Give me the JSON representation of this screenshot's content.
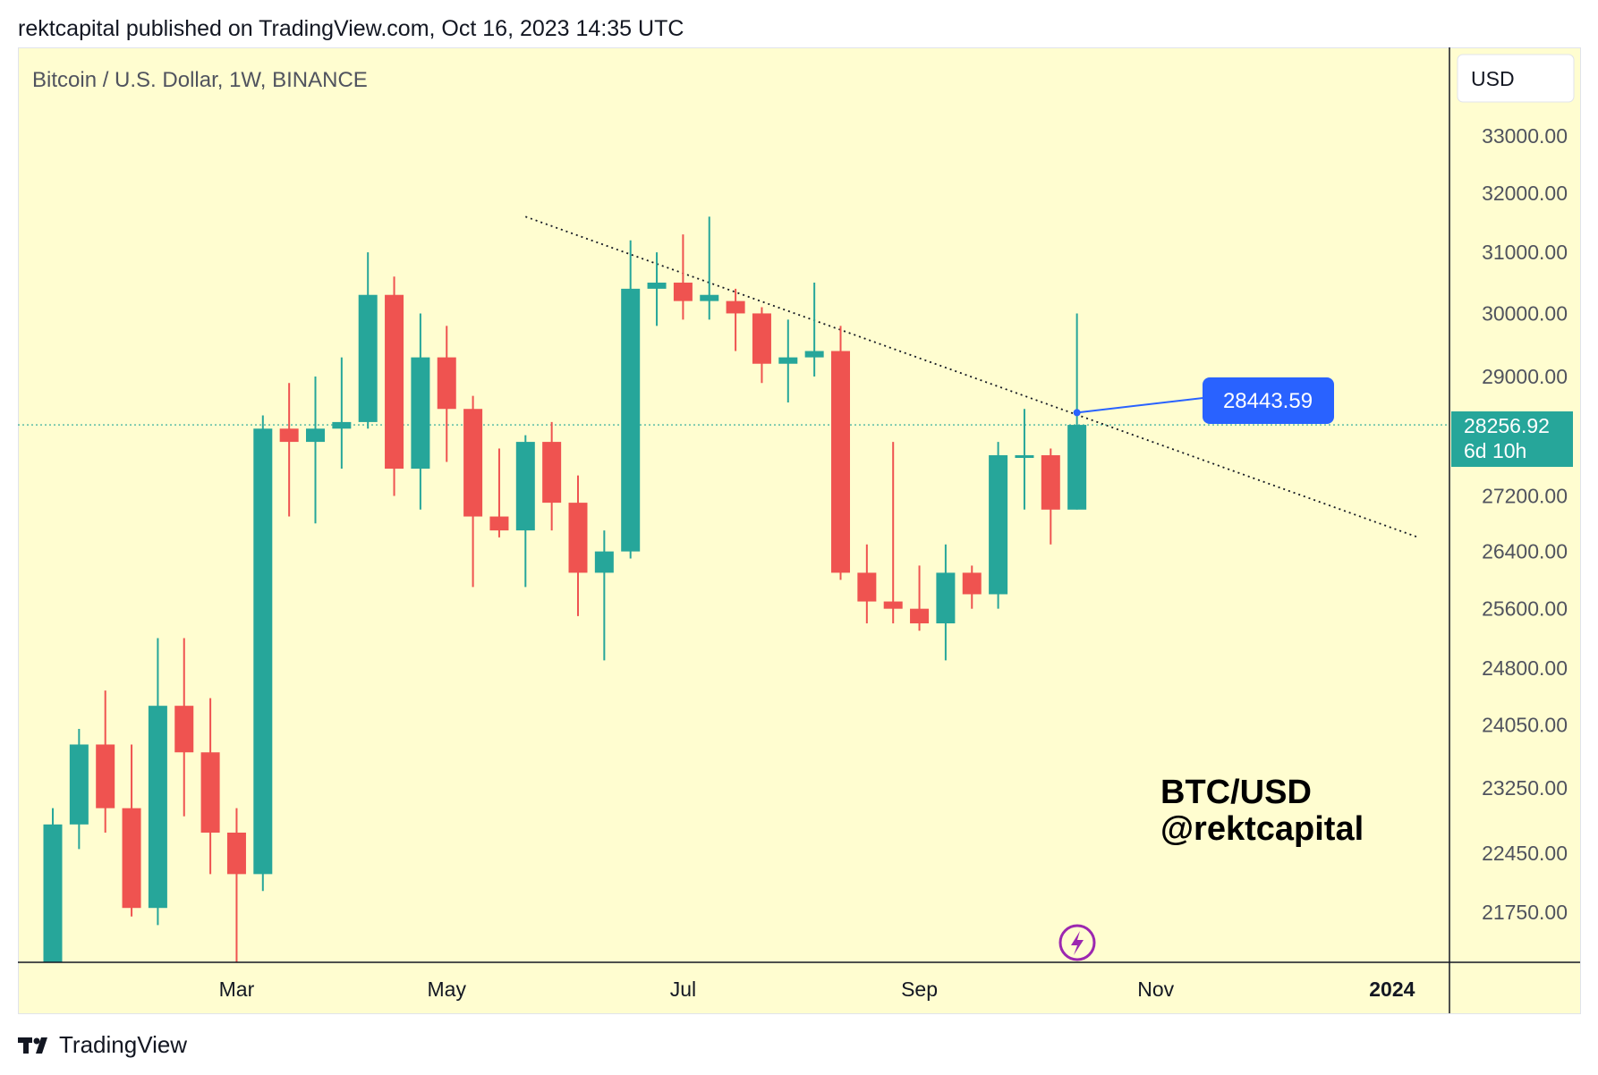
{
  "header": {
    "text": "rektcapital published on TradingView.com, Oct 16, 2023 14:35 UTC"
  },
  "chart_data": {
    "type": "candlestick",
    "symbol_label": "Bitcoin / U.S. Dollar, 1W, BINANCE",
    "currency": "USD",
    "watermark": [
      "BTC/USD",
      "@rektcapital"
    ],
    "price_axis": {
      "scale": "log",
      "ticks": [
        "33000.00",
        "32000.00",
        "31000.00",
        "30000.00",
        "29000.00",
        "27200.00",
        "26400.00",
        "25600.00",
        "24800.00",
        "24050.00",
        "23250.00",
        "22450.00",
        "21750.00"
      ]
    },
    "time_axis": {
      "ticks": [
        "Mar",
        "May",
        "Jul",
        "Sep",
        "Nov",
        "2024"
      ]
    },
    "last_price": {
      "value": "28256.92",
      "countdown": "6d 10h"
    },
    "annotation": {
      "label": "28443.59",
      "value": 28443.59
    },
    "trendline": {
      "from": {
        "week": 18,
        "price": 31600
      },
      "to": {
        "week": 52,
        "price": 26600
      },
      "style": "dotted"
    },
    "colors": {
      "up": "#26a69a",
      "down": "#ef5350",
      "background": "#fffdd0",
      "annotation": "#2962ff"
    },
    "candles": [
      {
        "week": 0,
        "o": 21000,
        "h": 23000,
        "l": 20900,
        "c": 22800
      },
      {
        "week": 1,
        "o": 22800,
        "h": 24000,
        "l": 22500,
        "c": 23800
      },
      {
        "week": 2,
        "o": 23800,
        "h": 24500,
        "l": 22700,
        "c": 23000
      },
      {
        "week": 3,
        "o": 23000,
        "h": 23800,
        "l": 21700,
        "c": 21800
      },
      {
        "week": 4,
        "o": 21800,
        "h": 25200,
        "l": 21600,
        "c": 24300
      },
      {
        "week": 5,
        "o": 24300,
        "h": 25200,
        "l": 22900,
        "c": 23700
      },
      {
        "week": 6,
        "o": 23700,
        "h": 24400,
        "l": 22200,
        "c": 22700
      },
      {
        "week": 7,
        "o": 22700,
        "h": 23000,
        "l": 20100,
        "c": 22200
      },
      {
        "week": 8,
        "o": 22200,
        "h": 28400,
        "l": 22000,
        "c": 28200
      },
      {
        "week": 9,
        "o": 28200,
        "h": 28900,
        "l": 26900,
        "c": 28000
      },
      {
        "week": 10,
        "o": 28000,
        "h": 29000,
        "l": 26800,
        "c": 28200
      },
      {
        "week": 11,
        "o": 28200,
        "h": 29300,
        "l": 27600,
        "c": 28300
      },
      {
        "week": 12,
        "o": 28300,
        "h": 31000,
        "l": 28200,
        "c": 30300
      },
      {
        "week": 13,
        "o": 30300,
        "h": 30600,
        "l": 27200,
        "c": 27600
      },
      {
        "week": 14,
        "o": 27600,
        "h": 30000,
        "l": 27000,
        "c": 29300
      },
      {
        "week": 15,
        "o": 29300,
        "h": 29800,
        "l": 27700,
        "c": 28500
      },
      {
        "week": 16,
        "o": 28500,
        "h": 28700,
        "l": 25900,
        "c": 26900
      },
      {
        "week": 17,
        "o": 26900,
        "h": 27900,
        "l": 26600,
        "c": 26700
      },
      {
        "week": 18,
        "o": 26700,
        "h": 28100,
        "l": 25900,
        "c": 28000
      },
      {
        "week": 19,
        "o": 28000,
        "h": 28300,
        "l": 26700,
        "c": 27100
      },
      {
        "week": 20,
        "o": 27100,
        "h": 27500,
        "l": 25500,
        "c": 26100
      },
      {
        "week": 21,
        "o": 26100,
        "h": 26700,
        "l": 24900,
        "c": 26400
      },
      {
        "week": 22,
        "o": 26400,
        "h": 31200,
        "l": 26300,
        "c": 30400
      },
      {
        "week": 23,
        "o": 30400,
        "h": 31000,
        "l": 29800,
        "c": 30500
      },
      {
        "week": 24,
        "o": 30500,
        "h": 31300,
        "l": 29900,
        "c": 30200
      },
      {
        "week": 25,
        "o": 30200,
        "h": 31600,
        "l": 29900,
        "c": 30300
      },
      {
        "week": 26,
        "o": 30200,
        "h": 30400,
        "l": 29400,
        "c": 30000
      },
      {
        "week": 27,
        "o": 30000,
        "h": 30100,
        "l": 28900,
        "c": 29200
      },
      {
        "week": 28,
        "o": 29200,
        "h": 29900,
        "l": 28600,
        "c": 29300
      },
      {
        "week": 29,
        "o": 29300,
        "h": 30500,
        "l": 29000,
        "c": 29400
      },
      {
        "week": 30,
        "o": 29400,
        "h": 29800,
        "l": 26000,
        "c": 26100
      },
      {
        "week": 31,
        "o": 26100,
        "h": 26500,
        "l": 25400,
        "c": 25700
      },
      {
        "week": 32,
        "o": 25700,
        "h": 28000,
        "l": 25400,
        "c": 25600
      },
      {
        "week": 33,
        "o": 25600,
        "h": 26200,
        "l": 25300,
        "c": 25400
      },
      {
        "week": 34,
        "o": 25400,
        "h": 26500,
        "l": 24900,
        "c": 26100
      },
      {
        "week": 35,
        "o": 26100,
        "h": 26200,
        "l": 25600,
        "c": 25800
      },
      {
        "week": 36,
        "o": 25800,
        "h": 28000,
        "l": 25600,
        "c": 27800
      },
      {
        "week": 37,
        "o": 27800,
        "h": 28500,
        "l": 27000,
        "c": 27800
      },
      {
        "week": 38,
        "o": 27800,
        "h": 27900,
        "l": 26500,
        "c": 27000
      },
      {
        "week": 39,
        "o": 27000,
        "h": 30000,
        "l": 27000,
        "c": 28256.92
      }
    ]
  }
}
